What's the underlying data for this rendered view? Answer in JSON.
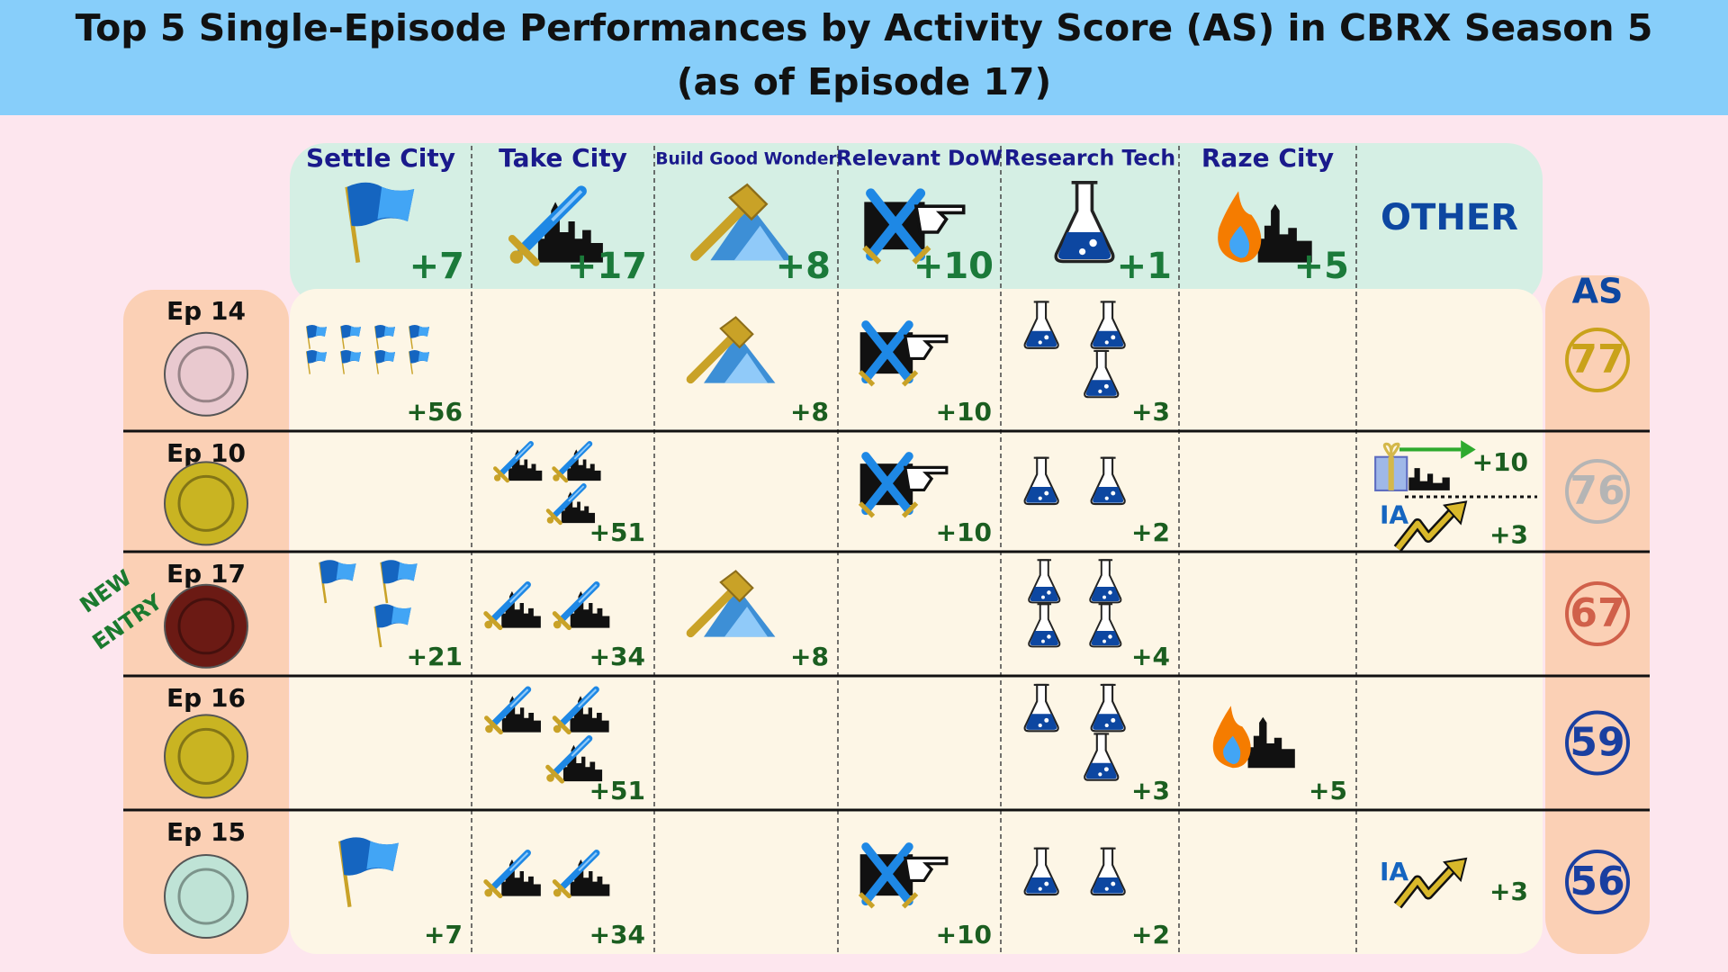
{
  "header": {
    "title": "Top 5 Single-Episode Performances by Activity Score (AS) in CBRX Season 5",
    "subtitle": "(as of Episode 17)"
  },
  "columns": [
    {
      "name": "Settle City",
      "points": "+7",
      "icon": "flag"
    },
    {
      "name": "Take City",
      "points": "+17",
      "icon": "take"
    },
    {
      "name": "Build Good Wonder",
      "points": "+8",
      "icon": "wonder"
    },
    {
      "name": "Relevant DoW",
      "points": "+10",
      "icon": "dow"
    },
    {
      "name": "Research Tech",
      "points": "+1",
      "icon": "flask"
    },
    {
      "name": "Raze City",
      "points": "+5",
      "icon": "raze"
    }
  ],
  "other_label": "OTHER",
  "score_label": "AS",
  "new_entry_label": [
    "NEW",
    "ENTRY"
  ],
  "rows": [
    {
      "episode": "Ep 14",
      "emblem_color": "#e9c9cf",
      "score": 77,
      "score_color": "#c9a21a",
      "new_entry": false,
      "cells": [
        {
          "count": 8,
          "total": "+56"
        },
        null,
        {
          "count": 1,
          "total": "+8"
        },
        {
          "count": 1,
          "total": "+10"
        },
        {
          "count": 3,
          "total": "+3"
        },
        null
      ],
      "other": []
    },
    {
      "episode": "Ep 10",
      "emblem_color": "#c9b422",
      "score": 76,
      "score_color": "#b5b5b5",
      "new_entry": false,
      "cells": [
        null,
        {
          "count": 3,
          "total": "+51"
        },
        null,
        {
          "count": 1,
          "total": "+10"
        },
        {
          "count": 2,
          "total": "+2"
        },
        null
      ],
      "other": [
        {
          "icon": "gift",
          "total": "+10"
        },
        {
          "icon": "ia",
          "label": "IA",
          "total": "+3"
        }
      ]
    },
    {
      "episode": "Ep 17",
      "emblem_color": "#6b1a14",
      "score": 67,
      "score_color": "#d0604a",
      "new_entry": true,
      "cells": [
        {
          "count": 3,
          "total": "+21"
        },
        {
          "count": 2,
          "total": "+34"
        },
        {
          "count": 1,
          "total": "+8"
        },
        null,
        {
          "count": 4,
          "total": "+4"
        },
        null
      ],
      "other": []
    },
    {
      "episode": "Ep 16",
      "emblem_color": "#c9b422",
      "score": 59,
      "score_color": "#1a3fa0",
      "new_entry": false,
      "cells": [
        null,
        {
          "count": 3,
          "total": "+51"
        },
        null,
        null,
        {
          "count": 3,
          "total": "+3"
        },
        {
          "count": 1,
          "total": "+5"
        }
      ],
      "other": []
    },
    {
      "episode": "Ep 15",
      "emblem_color": "#bfe3d6",
      "score": 56,
      "score_color": "#1a3fa0",
      "new_entry": false,
      "cells": [
        {
          "count": 1,
          "total": "+7"
        },
        {
          "count": 2,
          "total": "+34"
        },
        null,
        {
          "count": 1,
          "total": "+10"
        },
        {
          "count": 2,
          "total": "+2"
        },
        null
      ],
      "other": [
        {
          "icon": "ia",
          "label": "IA",
          "total": "+3"
        }
      ]
    }
  ]
}
